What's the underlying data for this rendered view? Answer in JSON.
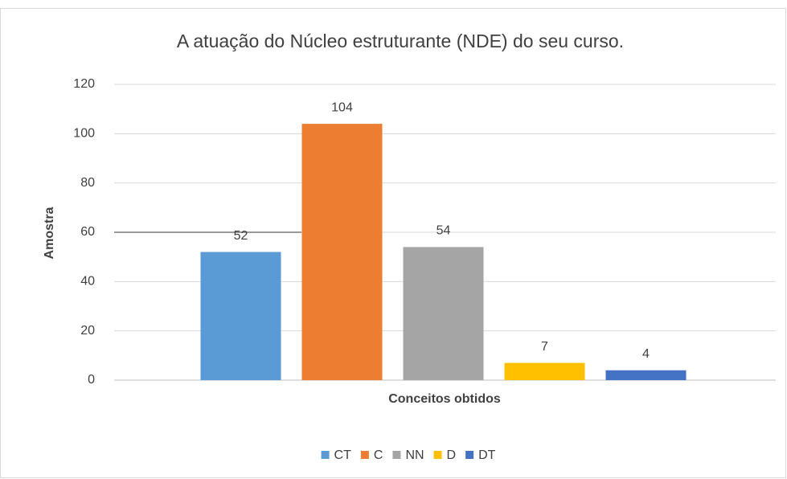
{
  "chart_data": {
    "type": "bar",
    "title": "A atuação do Núcleo  estruturante (NDE) do seu curso.",
    "xlabel": "Conceitos obtidos",
    "ylabel": "Amostra",
    "categories": [
      null
    ],
    "series": [
      {
        "name": "CT",
        "color": "#5b9bd5",
        "values": [
          52
        ]
      },
      {
        "name": "C",
        "color": "#ed7d31",
        "values": [
          104
        ]
      },
      {
        "name": "NN",
        "color": "#a5a5a5",
        "values": [
          54
        ]
      },
      {
        "name": "D",
        "color": "#ffc000",
        "values": [
          7
        ]
      },
      {
        "name": "DT",
        "color": "#4472c4",
        "values": [
          4
        ]
      }
    ],
    "ylim": [
      0,
      120
    ],
    "yticks": [
      0,
      20,
      40,
      60,
      80,
      100,
      120
    ],
    "grid": true,
    "legend": "bottom"
  }
}
